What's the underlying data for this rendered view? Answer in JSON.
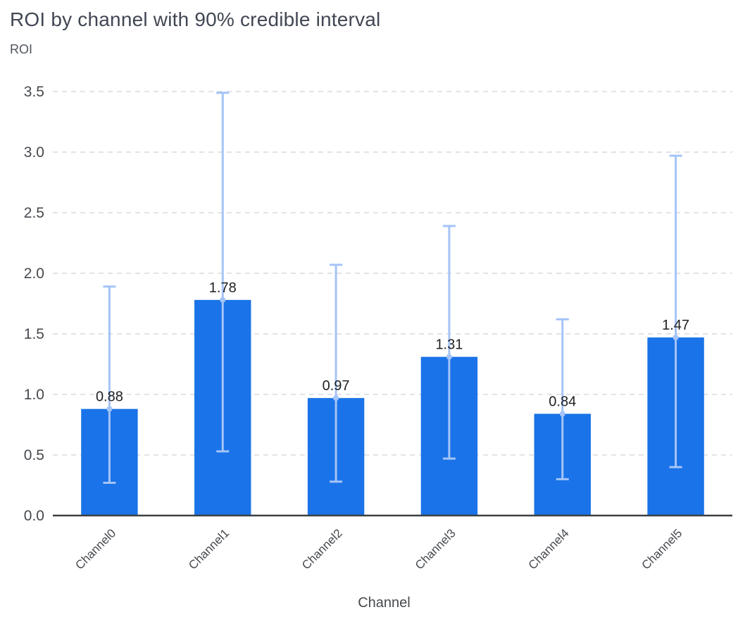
{
  "chart_data": {
    "type": "bar",
    "title": "ROI by channel with 90% credible interval",
    "ylabel": "ROI",
    "xlabel": "Channel",
    "categories": [
      "Channel0",
      "Channel1",
      "Channel2",
      "Channel3",
      "Channel4",
      "Channel5"
    ],
    "values": [
      0.88,
      1.78,
      0.97,
      1.31,
      0.84,
      1.47
    ],
    "value_labels": [
      "0.88",
      "1.78",
      "0.97",
      "1.31",
      "0.84",
      "1.47"
    ],
    "error_low": [
      0.27,
      0.53,
      0.28,
      0.47,
      0.3,
      0.4
    ],
    "error_high": [
      1.89,
      3.49,
      2.07,
      2.39,
      1.62,
      2.97
    ],
    "ylim": [
      0.0,
      3.5
    ],
    "ytick_step": 0.5,
    "ytick_labels": [
      "0.0",
      "0.5",
      "1.0",
      "1.5",
      "2.0",
      "2.5",
      "3.0",
      "3.5"
    ],
    "grid": true,
    "legend": "none",
    "colors": {
      "bar": "#1a73e8",
      "error_bar": "#a5c4f7",
      "grid": "#d7dade",
      "axis_line": "#3c4043",
      "tick_label": "#46494e",
      "value_label": "#202124",
      "axis_title": "#46494e"
    }
  }
}
